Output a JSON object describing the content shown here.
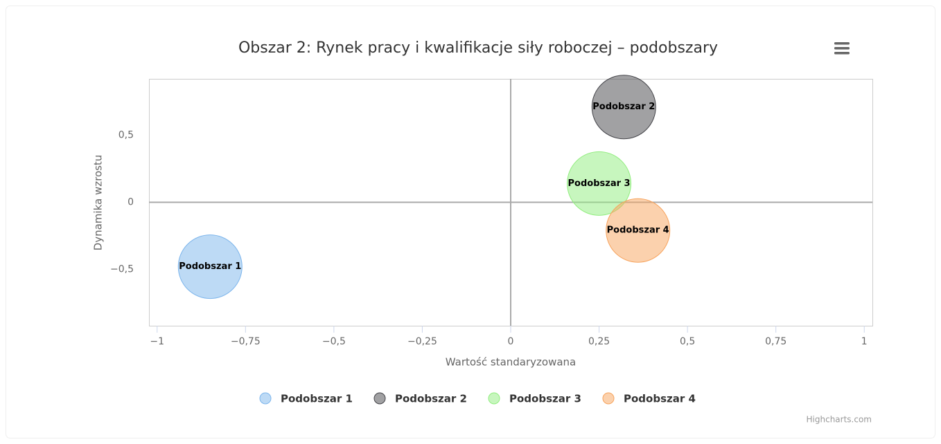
{
  "chart_data": {
    "type": "bubble",
    "title": "Obszar 2: Rynek pracy i kwalifikacje siły roboczej – podobszary",
    "xlabel": "Wartość standaryzowana",
    "ylabel": "Dynamika wzrostu",
    "xlim": [
      -1.023,
      1.023
    ],
    "ylim": [
      -0.92,
      0.92
    ],
    "xticks": [
      {
        "value": -1,
        "label": "−1"
      },
      {
        "value": -0.75,
        "label": "−0,75"
      },
      {
        "value": -0.5,
        "label": "−0,5"
      },
      {
        "value": -0.25,
        "label": "−0,25"
      },
      0,
      {
        "value": 0.25,
        "label": "0,25"
      },
      {
        "value": 0.5,
        "label": "0,5"
      },
      {
        "value": 0.75,
        "label": "0,75"
      },
      1
    ],
    "yticks": [
      {
        "value": -0.5,
        "label": "−0,5"
      },
      0,
      {
        "value": 0.5,
        "label": "0,5"
      }
    ],
    "x_plot_line": 0,
    "y_plot_line": 0,
    "series": [
      {
        "name": "Podobszar 1",
        "color": "#7cb5ec",
        "x": [
          -0.85
        ],
        "values": [
          -0.48
        ],
        "sizes": [
          1
        ]
      },
      {
        "name": "Podobszar 2",
        "color": "#434348",
        "x": [
          0.32
        ],
        "values": [
          0.71
        ],
        "sizes": [
          1
        ]
      },
      {
        "name": "Podobszar 3",
        "color": "#90ed7d",
        "x": [
          0.25
        ],
        "values": [
          0.14
        ],
        "sizes": [
          1
        ]
      },
      {
        "name": "Podobszar 4",
        "color": "#f7a35c",
        "x": [
          0.36
        ],
        "values": [
          -0.21
        ],
        "sizes": [
          1
        ]
      }
    ],
    "credits": "Highcharts.com"
  }
}
